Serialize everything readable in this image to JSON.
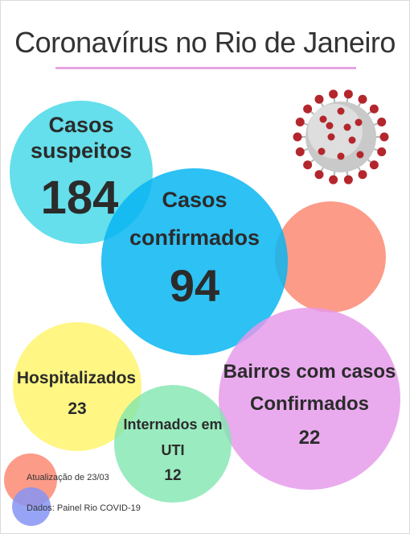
{
  "title": "Coronavírus no Rio de Janeiro",
  "colors": {
    "suspeitos": "#38d6e6",
    "confirmados": "#08b6f2",
    "salmon": "#fb8a73",
    "hospitalizados": "#fff577",
    "uti": "#7ee6ae",
    "bairros": "#e598ea",
    "legend_dados": "#8594f5",
    "underline": "#e6a4e4"
  },
  "stats": {
    "suspeitos": {
      "label_line1": "Casos",
      "label_line2": "suspeitos",
      "value": "184"
    },
    "confirmados": {
      "label_line1": "Casos",
      "label_line2": "confirmados",
      "value": "94"
    },
    "hospitalizados": {
      "label": "Hospitalizados",
      "value": "23"
    },
    "uti": {
      "label_line1": "Internados em",
      "label_line2": "UTI",
      "value": "12"
    },
    "bairros": {
      "label_line1": "Bairros com casos",
      "label_line2": "Confirmados",
      "value": "22"
    }
  },
  "footer": {
    "atualizacao": "Atualização de 23/03",
    "dados": "Dados: Painel Rio COVID-19"
  },
  "icons": {
    "virus": "coronavirus-icon"
  }
}
